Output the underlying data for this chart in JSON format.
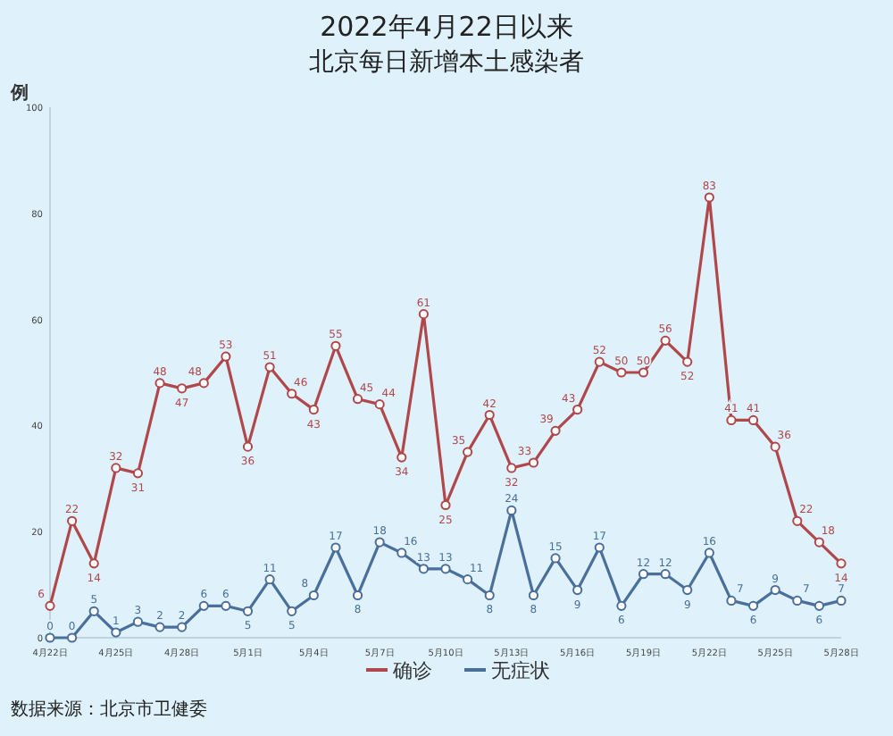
{
  "chart_data": {
    "type": "line",
    "title": "2022年4月22日以来",
    "subtitle": "北京每日新增本土感染者",
    "ylabel": "例",
    "categories": [
      "4月22日",
      null,
      null,
      "4月25日",
      null,
      null,
      "4月28日",
      null,
      null,
      "5月1日",
      null,
      null,
      "5月4日",
      null,
      null,
      "5月7日",
      null,
      null,
      "5月10日",
      null,
      null,
      "5月13日",
      null,
      null,
      "5月16日",
      null,
      null,
      "5月19日",
      null,
      null,
      "5月22日",
      null,
      null,
      "5月25日",
      null,
      null,
      "5月28日"
    ],
    "series": [
      {
        "name": "确诊",
        "color": "#b0474a",
        "values": [
          6,
          22,
          14,
          32,
          31,
          48,
          47,
          48,
          53,
          36,
          51,
          46,
          43,
          55,
          45,
          44,
          34,
          61,
          25,
          35,
          42,
          32,
          33,
          39,
          43,
          52,
          50,
          50,
          56,
          52,
          83,
          41,
          41,
          36,
          22,
          18,
          14
        ]
      },
      {
        "name": "无症状",
        "color": "#4a6f9a",
        "values": [
          0,
          0,
          5,
          1,
          3,
          2,
          2,
          6,
          6,
          5,
          11,
          5,
          8,
          17,
          8,
          18,
          16,
          13,
          13,
          11,
          8,
          24,
          8,
          15,
          9,
          17,
          6,
          12,
          12,
          9,
          16,
          7,
          6,
          9,
          7,
          6,
          7
        ]
      }
    ],
    "ylim": [
      0,
      100
    ],
    "yticks": [
      0,
      20,
      40,
      60,
      80,
      100
    ],
    "grid": false,
    "legend": "bottom",
    "marker": "circle",
    "line_style": "solid",
    "data_labels": true,
    "annotations": [
      "数据来源：北京市卫健委"
    ]
  }
}
